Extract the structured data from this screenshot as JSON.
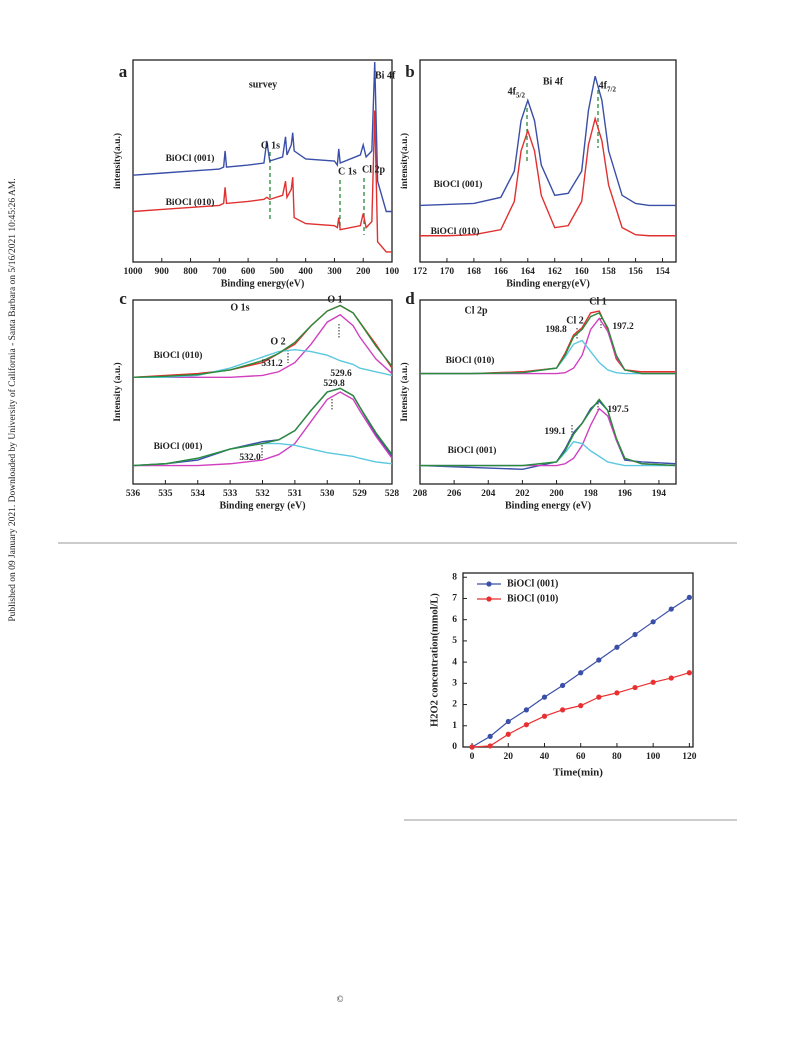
{
  "watermark": "Published on 09 January 2021. Downloaded by University of California - Santa Barbara on 5/16/2021 10:45:26 AM.",
  "copyright": "©",
  "chart_data": [
    {
      "type": "line",
      "panel_label": "a",
      "title": "survey",
      "xlabel": "Binding energy(eV)",
      "ylabel": "intensity(a.u.)",
      "x": [
        1000,
        900,
        800,
        700,
        685,
        680,
        675,
        600,
        545,
        535,
        525,
        480,
        470,
        465,
        450,
        445,
        440,
        400,
        300,
        290,
        285,
        280,
        210,
        200,
        190,
        170,
        160,
        150,
        120,
        100
      ],
      "xlim": [
        1000,
        100
      ],
      "xticks": [
        1000,
        900,
        800,
        700,
        600,
        500,
        400,
        300,
        200,
        100
      ],
      "ylim": [
        0,
        100
      ],
      "series": [
        {
          "color": "#3a4fa8",
          "values": [
            43,
            44,
            45,
            46,
            47,
            55,
            47,
            48,
            49,
            60,
            50,
            52,
            62,
            53,
            58,
            64,
            55,
            51,
            50,
            48,
            56,
            49,
            53,
            58,
            52,
            55,
            99,
            40,
            25,
            25
          ]
        },
        {
          "color": "#e03030",
          "values": [
            25,
            26,
            27,
            28,
            29,
            37,
            29,
            30,
            31,
            32,
            31,
            33,
            40,
            32,
            36,
            42,
            22,
            19,
            18,
            17,
            22,
            16,
            18,
            24,
            17,
            20,
            75,
            10,
            5,
            5
          ]
        }
      ],
      "annotations": [
        "Bi 4f",
        "O 1s",
        "C 1s",
        "Cl 2p",
        "BiOCl (001)",
        "BiOCl (010)"
      ]
    },
    {
      "type": "line",
      "panel_label": "b",
      "title": "Bi 4f",
      "xlabel": "Binding energy(eV)",
      "ylabel": "intensity(a.u.)",
      "x": [
        172,
        170,
        168,
        166,
        165,
        164.5,
        164,
        163.5,
        163,
        162,
        161,
        160,
        159.5,
        159,
        158.5,
        158,
        157,
        156,
        155,
        153
      ],
      "xlim": [
        172,
        153
      ],
      "xticks": [
        172,
        170,
        168,
        166,
        164,
        162,
        160,
        158,
        156,
        154
      ],
      "ylim": [
        0,
        100
      ],
      "series": [
        {
          "color": "#3a4fa8",
          "values": [
            28,
            28.5,
            29,
            32,
            45,
            70,
            80,
            70,
            48,
            33,
            34,
            45,
            75,
            92,
            80,
            55,
            33,
            29,
            28,
            28
          ]
        },
        {
          "color": "#e03030",
          "values": [
            13,
            13,
            13.5,
            16,
            30,
            55,
            65,
            55,
            33,
            17,
            18,
            30,
            58,
            71,
            60,
            38,
            17,
            13.5,
            13,
            13
          ]
        }
      ],
      "annotations": [
        "4f",
        "5/2",
        "4f",
        "7/2",
        "BiOCl (001)",
        "BiOCl (010)"
      ]
    },
    {
      "type": "line",
      "panel_label": "c",
      "title": "O 1s",
      "xlabel": "Binding energy (eV)",
      "ylabel": "Intensity (a.u.)",
      "x": [
        536,
        535,
        534,
        533,
        532,
        531.5,
        531,
        530.5,
        530,
        529.6,
        529.2,
        529,
        528.5,
        528
      ],
      "xlim": [
        536,
        528
      ],
      "xticks": [
        536,
        535,
        534,
        533,
        532,
        531,
        530,
        529,
        528
      ],
      "ylim": [
        0,
        100
      ],
      "series": [
        {
          "color": "#e03030",
          "values": [
            58,
            59,
            60,
            62,
            66,
            71,
            76,
            86,
            94,
            97,
            93,
            88,
            76,
            63
          ]
        },
        {
          "color": "#d040c0",
          "values": [
            58,
            58,
            58,
            58,
            59,
            61,
            66,
            76,
            88,
            92,
            86,
            80,
            68,
            60
          ]
        },
        {
          "color": "#5bc8e0",
          "values": [
            58,
            58,
            59,
            63,
            69,
            72,
            73,
            72,
            70,
            67,
            65,
            63,
            61,
            59
          ]
        },
        {
          "color": "#2a8a3a",
          "values": [
            58,
            58.5,
            59.5,
            62,
            67,
            71,
            77,
            86,
            94,
            97,
            93,
            88,
            75,
            64
          ]
        },
        {
          "color": "#3a4fa8",
          "values": [
            10,
            11,
            13,
            19,
            23,
            24,
            29,
            40,
            50,
            52,
            48,
            42,
            27,
            15
          ]
        },
        {
          "color": "#d040c0",
          "values": [
            10,
            10,
            10,
            11,
            13,
            16,
            22,
            34,
            46,
            50,
            46,
            40,
            26,
            14
          ]
        },
        {
          "color": "#5bc8e0",
          "values": [
            10,
            11,
            14,
            19,
            22,
            22,
            21,
            19,
            17,
            16,
            15,
            14,
            12,
            11
          ]
        },
        {
          "color": "#2a8a3a",
          "values": [
            10,
            11,
            14,
            19,
            22,
            24,
            29,
            40,
            50,
            52,
            48,
            42,
            28,
            16
          ]
        }
      ],
      "annotations": [
        "O 1",
        "O 2",
        "529.6",
        "531.2",
        "BiOCl (010)",
        "BiOCl (001)",
        "529.8",
        "532.0"
      ]
    },
    {
      "type": "line",
      "panel_label": "d",
      "title": "Cl 2p",
      "xlabel": "Binding energy (eV)",
      "ylabel": "Intensity (a.u.)",
      "x": [
        208,
        205,
        202,
        200,
        199.5,
        199,
        198.5,
        198,
        197.5,
        197,
        196.5,
        196,
        195,
        193
      ],
      "xlim": [
        208,
        193
      ],
      "xticks": [
        208,
        206,
        204,
        202,
        200,
        198,
        196,
        194
      ],
      "ylim": [
        0,
        100
      ],
      "series": [
        {
          "color": "#e03030",
          "values": [
            60,
            60,
            61,
            63,
            71,
            81,
            85,
            93,
            94,
            84,
            68,
            62,
            61,
            61
          ]
        },
        {
          "color": "#d040c0",
          "values": [
            60,
            60,
            60,
            60,
            60.5,
            63,
            70,
            84,
            90,
            83,
            69,
            62,
            60,
            60
          ]
        },
        {
          "color": "#5bc8e0",
          "values": [
            60,
            60,
            60.5,
            63,
            69,
            76,
            78,
            72,
            66,
            62,
            60.5,
            60,
            60,
            60
          ]
        },
        {
          "color": "#2a8a3a",
          "values": [
            60,
            60,
            60.5,
            63,
            70,
            80,
            84,
            91,
            93,
            85,
            70,
            62,
            60,
            60
          ]
        },
        {
          "color": "#3a4fa8",
          "values": [
            10,
            9,
            8,
            12,
            19,
            28,
            33,
            41,
            45,
            40,
            24,
            13,
            12,
            11
          ]
        },
        {
          "color": "#d040c0",
          "values": [
            10,
            10,
            10,
            10,
            11,
            14,
            21,
            32,
            41,
            37,
            24,
            14,
            11,
            10
          ]
        },
        {
          "color": "#5bc8e0",
          "values": [
            10,
            10,
            10,
            12,
            17,
            23,
            22,
            18,
            15,
            12,
            11,
            10,
            10,
            10
          ]
        },
        {
          "color": "#2a8a3a",
          "values": [
            10,
            10,
            10,
            12,
            18,
            27,
            33,
            40,
            46,
            40,
            25,
            14,
            11,
            10
          ]
        }
      ],
      "annotations": [
        "Cl 1",
        "Cl 2",
        "198.8",
        "197.2",
        "BiOCl (010)",
        "BiOCl (001)",
        "199.1",
        "197.5"
      ]
    },
    {
      "type": "line",
      "xlabel": "Time(min)",
      "ylabel": "H2O2 concentration(mmol/L)",
      "x": [
        0,
        10,
        20,
        30,
        40,
        50,
        60,
        70,
        80,
        90,
        100,
        110,
        120
      ],
      "xlim": [
        -5,
        122
      ],
      "xticks": [
        0,
        20,
        40,
        60,
        80,
        100,
        120
      ],
      "ylim": [
        0,
        8.2
      ],
      "yticks": [
        0,
        1,
        2,
        3,
        4,
        5,
        6,
        7,
        8
      ],
      "legend": "upper left",
      "markers": true,
      "series": [
        {
          "name": "BiOCl (001)",
          "color": "#3a4fa8",
          "values": [
            0,
            0.5,
            1.2,
            1.75,
            2.35,
            2.9,
            3.5,
            4.1,
            4.7,
            5.3,
            5.9,
            6.5,
            7.05
          ]
        },
        {
          "name": "BiOCl (010)",
          "color": "#e83030",
          "values": [
            0,
            0.05,
            0.6,
            1.05,
            1.45,
            1.75,
            1.95,
            2.35,
            2.55,
            2.8,
            3.05,
            3.25,
            3.5
          ]
        }
      ]
    }
  ]
}
